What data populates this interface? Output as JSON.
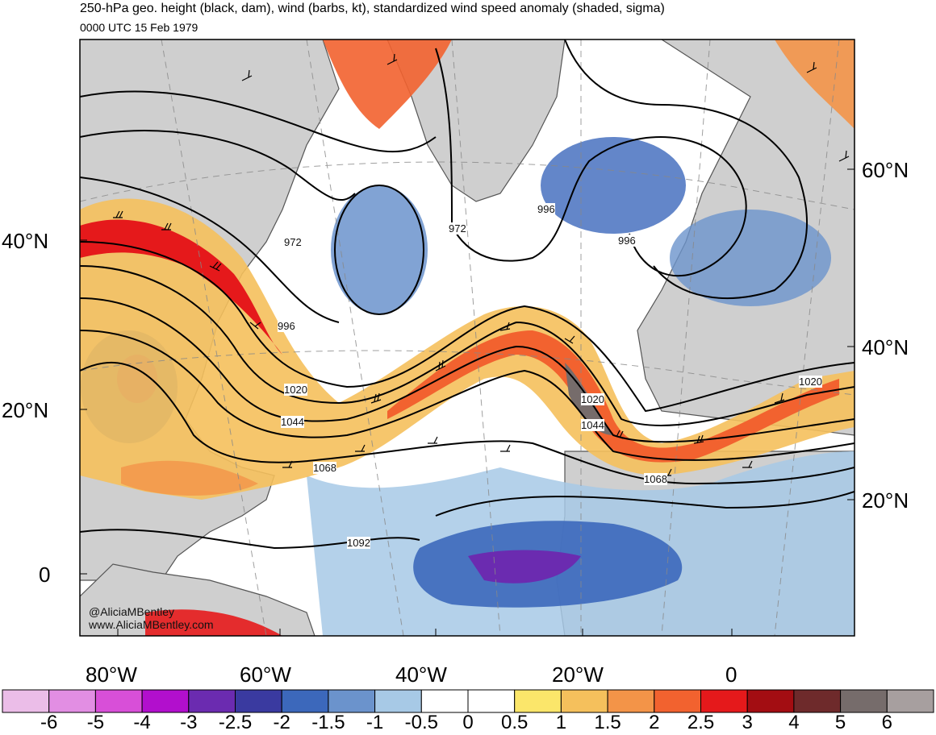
{
  "header": {
    "title": "250-hPa geo. height (black, dam), wind (barbs, kt), standardized wind speed anomaly (shaded, sigma)",
    "subtitle": "0000 UTC 15 Feb 1979"
  },
  "axes": {
    "lat_left": [
      "40°N",
      "20°N",
      "0"
    ],
    "lat_right": [
      "60°N",
      "40°N",
      "20°N"
    ],
    "lon_bottom": [
      "80°W",
      "60°W",
      "40°W",
      "20°W",
      "0"
    ]
  },
  "contour_labels": [
    "972",
    "972",
    "996",
    "996",
    "996",
    "1020",
    "1020",
    "1020",
    "1044",
    "1044",
    "1068",
    "1068",
    "1092"
  ],
  "colorbar": {
    "labels": [
      "-6",
      "-5",
      "-4",
      "-3",
      "-2.5",
      "-2",
      "-1.5",
      "-1",
      "-0.5",
      "0",
      "0.5",
      "1",
      "1.5",
      "2",
      "2.5",
      "3",
      "4",
      "5",
      "6"
    ],
    "colors": [
      "#ebbde8",
      "#e28ee3",
      "#d84fd8",
      "#b20fcd",
      "#6b2bb0",
      "#3a3aa0",
      "#3c68bb",
      "#6b93cc",
      "#a7c9e6",
      "#ffffff",
      "#ffffff",
      "#fbe66a",
      "#f5c05c",
      "#f39448",
      "#f2622f",
      "#e5191b",
      "#a30d12",
      "#6e2a2b",
      "#766c6b",
      "#a79f9f"
    ]
  },
  "credits": {
    "handle": "@AliciaMBentley",
    "site": "www.AliciaMBentley.com"
  },
  "colors": {
    "land": "#cfcfcf",
    "coast": "#555555",
    "contour": "#000000"
  }
}
